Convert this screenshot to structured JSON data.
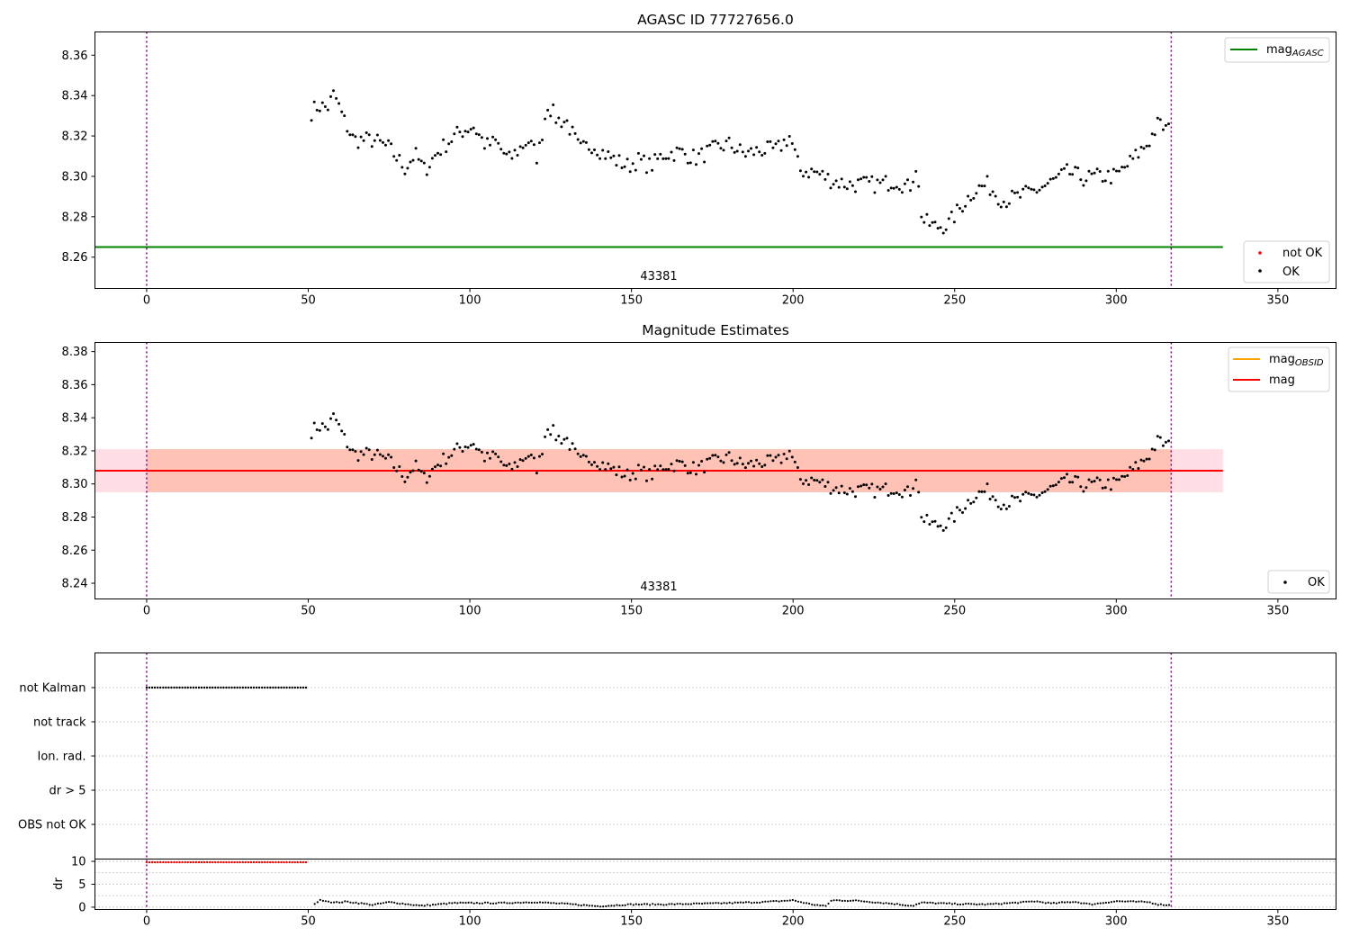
{
  "colors": {
    "ok_points": "#000000",
    "not_ok_points": "#ff0000",
    "agasc_line": "#008000",
    "obsid_line": "#ffa500",
    "mean_line": "#ff0000",
    "band_outer": "#ffc0cb",
    "band_inner": "#ffa07a",
    "time_markers": "#800080"
  },
  "chart_data": [
    {
      "type": "scatter",
      "title": "AGASC ID 77727656.0",
      "xlim": [
        -16,
        368
      ],
      "ylim": [
        8.2445,
        8.3715
      ],
      "xticks": [
        0,
        50,
        100,
        150,
        200,
        250,
        300,
        350
      ],
      "yticks": [
        8.26,
        8.28,
        8.3,
        8.32,
        8.34,
        8.36
      ],
      "ytick_labels": [
        "8.26",
        "8.28",
        "8.30",
        "8.32",
        "8.34",
        "8.36"
      ],
      "vertical_markers": [
        0,
        317
      ],
      "obsid_label": {
        "text": "43381",
        "x": 158
      },
      "agasc_mag": 8.265,
      "agasc_range": [
        -16,
        333
      ],
      "legend_upper": "top-right",
      "legend_lower": "bottom-right",
      "legend_upper_items": [
        {
          "name": "mag",
          "sub": "AGASC"
        }
      ],
      "legend_lower_items": [
        {
          "name": "not OK"
        },
        {
          "name": "OK"
        }
      ],
      "anchors": [
        [
          51,
          8.332
        ],
        [
          53,
          8.335
        ],
        [
          56,
          8.334
        ],
        [
          58,
          8.341
        ],
        [
          61,
          8.328
        ],
        [
          64,
          8.318
        ],
        [
          67,
          8.318
        ],
        [
          70,
          8.318
        ],
        [
          75,
          8.314
        ],
        [
          80,
          8.304
        ],
        [
          83,
          8.311
        ],
        [
          86,
          8.303
        ],
        [
          90,
          8.312
        ],
        [
          94,
          8.318
        ],
        [
          97,
          8.322
        ],
        [
          101,
          8.325
        ],
        [
          105,
          8.315
        ],
        [
          108,
          8.317
        ],
        [
          112,
          8.308
        ],
        [
          115,
          8.313
        ],
        [
          118,
          8.318
        ],
        [
          121,
          8.309
        ],
        [
          124,
          8.336
        ],
        [
          127,
          8.328
        ],
        [
          130,
          8.327
        ],
        [
          134,
          8.313
        ],
        [
          138,
          8.316
        ],
        [
          141,
          8.312
        ],
        [
          145,
          8.308
        ],
        [
          149,
          8.305
        ],
        [
          152,
          8.308
        ],
        [
          156,
          8.305
        ],
        [
          160,
          8.311
        ],
        [
          165,
          8.312
        ],
        [
          170,
          8.309
        ],
        [
          175,
          8.313
        ],
        [
          180,
          8.316
        ],
        [
          185,
          8.311
        ],
        [
          190,
          8.313
        ],
        [
          195,
          8.313
        ],
        [
          199,
          8.32
        ],
        [
          202,
          8.303
        ],
        [
          207,
          8.302
        ],
        [
          212,
          8.298
        ],
        [
          217,
          8.296
        ],
        [
          222,
          8.296
        ],
        [
          227,
          8.296
        ],
        [
          232,
          8.298
        ],
        [
          236,
          8.294
        ],
        [
          238,
          8.305
        ],
        [
          240,
          8.278
        ],
        [
          244,
          8.275
        ],
        [
          248,
          8.276
        ],
        [
          252,
          8.285
        ],
        [
          256,
          8.293
        ],
        [
          260,
          8.296
        ],
        [
          265,
          8.288
        ],
        [
          270,
          8.29
        ],
        [
          275,
          8.293
        ],
        [
          280,
          8.297
        ],
        [
          285,
          8.302
        ],
        [
          290,
          8.299
        ],
        [
          295,
          8.3
        ],
        [
          300,
          8.3
        ],
        [
          305,
          8.308
        ],
        [
          310,
          8.317
        ],
        [
          313,
          8.326
        ],
        [
          317,
          8.322
        ]
      ]
    },
    {
      "type": "scatter",
      "title": "Magnitude Estimates",
      "xlim": [
        -16,
        368
      ],
      "ylim": [
        8.2305,
        8.3855
      ],
      "xticks": [
        0,
        50,
        100,
        150,
        200,
        250,
        300,
        350
      ],
      "yticks": [
        8.24,
        8.26,
        8.28,
        8.3,
        8.32,
        8.34,
        8.36,
        8.38
      ],
      "ytick_labels": [
        "8.24",
        "8.26",
        "8.28",
        "8.30",
        "8.32",
        "8.34",
        "8.36",
        "8.38"
      ],
      "vertical_markers": [
        0,
        317
      ],
      "obsid_label": {
        "text": "43381",
        "x": 158
      },
      "mean_mag": 8.308,
      "mean_range": [
        -16,
        333
      ],
      "band_outer": [
        8.295,
        8.321
      ],
      "band_outer_range": [
        -16,
        333
      ],
      "band_inner": [
        8.295,
        8.321
      ],
      "band_inner_range": [
        0,
        317
      ],
      "legend_upper": "top-right",
      "legend_lower": "bottom-right",
      "legend_upper_items": [
        {
          "name": "mag",
          "sub": "OBSID"
        },
        {
          "name": "mag"
        }
      ],
      "legend_lower_items": [
        {
          "name": "OK"
        }
      ]
    },
    {
      "type": "scatter",
      "title": "",
      "xlim": [
        -16,
        368
      ],
      "xticks": [
        0,
        50,
        100,
        150,
        200,
        250,
        300,
        350
      ],
      "vertical_markers": [
        0,
        317
      ],
      "flag_rows": [
        "not Kalman",
        "not track",
        "Ion. rad.",
        "dr > 5",
        "OBS not OK"
      ],
      "flag_segments": [
        {
          "row": "not Kalman",
          "x": [
            0,
            50
          ]
        }
      ]
    },
    {
      "type": "scatter",
      "title": "",
      "ylabel": "dr",
      "xlim": [
        -16,
        368
      ],
      "ylim": [
        -0.5,
        10.5
      ],
      "xticks": [
        0,
        50,
        100,
        150,
        200,
        250,
        300,
        350
      ],
      "yticks": [
        0,
        5,
        10
      ],
      "vertical_markers": [
        0,
        317
      ],
      "not_ok_segment": {
        "x": [
          0,
          50
        ],
        "dr": 9.8
      },
      "dr_anchors": [
        [
          52,
          0.8
        ],
        [
          54,
          1.6
        ],
        [
          58,
          1.0
        ],
        [
          62,
          1.2
        ],
        [
          70,
          0.5
        ],
        [
          75,
          1.1
        ],
        [
          85,
          0.3
        ],
        [
          95,
          0.9
        ],
        [
          110,
          0.9
        ],
        [
          120,
          1.1
        ],
        [
          130,
          0.7
        ],
        [
          140,
          0.2
        ],
        [
          150,
          0.6
        ],
        [
          160,
          0.6
        ],
        [
          175,
          0.8
        ],
        [
          190,
          1.1
        ],
        [
          200,
          1.5
        ],
        [
          205,
          0.7
        ],
        [
          210,
          0.2
        ],
        [
          212,
          1.5
        ],
        [
          220,
          1.4
        ],
        [
          230,
          0.8
        ],
        [
          237,
          0.3
        ],
        [
          240,
          1.0
        ],
        [
          250,
          0.7
        ],
        [
          260,
          0.6
        ],
        [
          270,
          1.0
        ],
        [
          275,
          1.3
        ],
        [
          280,
          0.8
        ],
        [
          287,
          1.2
        ],
        [
          292,
          0.6
        ],
        [
          300,
          1.3
        ],
        [
          310,
          1.1
        ],
        [
          313,
          0.6
        ],
        [
          317,
          0.4
        ]
      ]
    }
  ]
}
